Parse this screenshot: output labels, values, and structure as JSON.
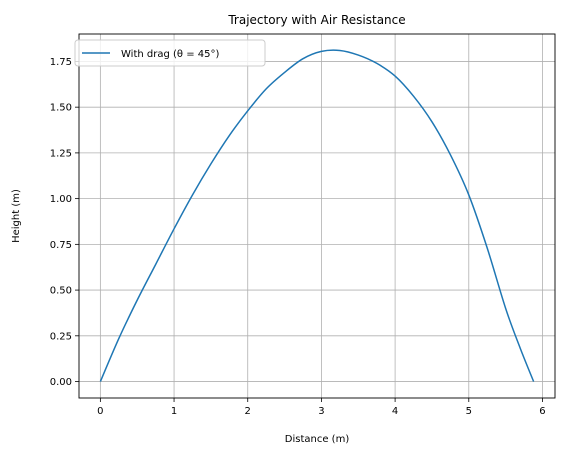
{
  "chart_data": {
    "type": "line",
    "title": "Trajectory with Air Resistance",
    "xlabel": "Distance (m)",
    "ylabel": "Height (m)",
    "xlim": [
      -0.29,
      6.17
    ],
    "ylim": [
      -0.09,
      1.9
    ],
    "xticks": [
      0,
      1,
      2,
      3,
      4,
      5,
      6
    ],
    "xtick_labels": [
      "0",
      "1",
      "2",
      "3",
      "4",
      "5",
      "6"
    ],
    "yticks": [
      0,
      0.25,
      0.5,
      0.75,
      1.0,
      1.25,
      1.5,
      1.75
    ],
    "ytick_labels": [
      "0.00",
      "0.25",
      "0.50",
      "0.75",
      "1.00",
      "1.25",
      "1.50",
      "1.75"
    ],
    "grid": true,
    "legend_position": "upper-left",
    "colors": {
      "series": "#1f77b4",
      "grid": "#b0b0b0"
    },
    "series": [
      {
        "name": "With drag (θ = 45°)",
        "x": [
          0,
          0.25,
          0.5,
          0.75,
          1.0,
          1.25,
          1.5,
          1.75,
          2.0,
          2.25,
          2.5,
          2.75,
          3.0,
          3.25,
          3.5,
          3.75,
          4.0,
          4.25,
          4.5,
          4.75,
          5.0,
          5.25,
          5.5,
          5.7,
          5.88
        ],
        "y": [
          0,
          0.235,
          0.445,
          0.64,
          0.835,
          1.02,
          1.19,
          1.345,
          1.48,
          1.6,
          1.69,
          1.765,
          1.805,
          1.81,
          1.785,
          1.74,
          1.67,
          1.56,
          1.42,
          1.24,
          1.02,
          0.73,
          0.4,
          0.18,
          0
        ]
      }
    ]
  }
}
